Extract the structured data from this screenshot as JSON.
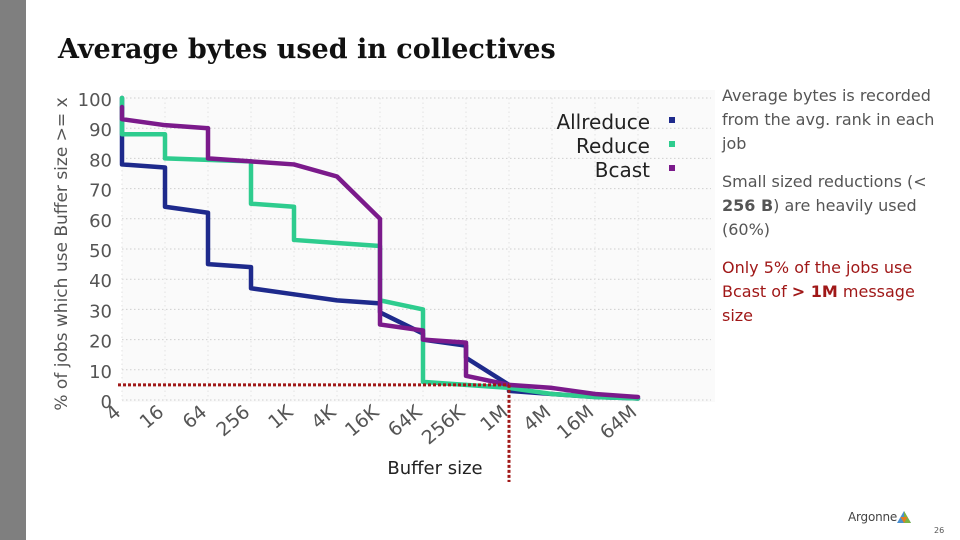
{
  "slide": {
    "title": "Average bytes used in collectives",
    "page_number": "26",
    "logo_text": "Argonne"
  },
  "notes": {
    "n1": "Average bytes is recorded from the avg. rank in each job",
    "n2_pre": "Small sized reductions    (< ",
    "n2_bold": "256 B",
    "n2_post": ") are heavily used (60%)",
    "n3_pre": "Only 5% of the jobs use Bcast of  ",
    "n3_bold": "> 1M",
    "n3_post": " message size"
  },
  "colors": {
    "allreduce": "#1e2a8c",
    "reduce": "#2ecc8e",
    "bcast": "#7b1a8b",
    "marker": "#a01818"
  },
  "chart_data": {
    "type": "line",
    "xlabel": "Buffer size",
    "ylabel": "% of jobs which use Buffer size >= x",
    "x_ticks": [
      "4",
      "16",
      "64",
      "256",
      "1K",
      "4K",
      "16K",
      "64K",
      "256K",
      "1M",
      "4M",
      "16M",
      "64M"
    ],
    "y_ticks": [
      "0",
      "10",
      "20",
      "30",
      "40",
      "50",
      "60",
      "70",
      "80",
      "90",
      "100"
    ],
    "ylim": [
      0,
      100
    ],
    "grid": true,
    "legend_placement": "top-right",
    "series": [
      {
        "name": "Allreduce",
        "x": [
          "4",
          "4",
          "16",
          "16",
          "64",
          "64",
          "256",
          "256",
          "256",
          "1K",
          "4K",
          "16K",
          "16K",
          "64K",
          "64K",
          "256K",
          "256K",
          "1M",
          "1M",
          "4M",
          "16M",
          "64M"
        ],
        "values": [
          100,
          78,
          77,
          64,
          62,
          45,
          44,
          38,
          37,
          35,
          33,
          32,
          29,
          22,
          20,
          18,
          14,
          5,
          3,
          2,
          1,
          0.5
        ]
      },
      {
        "name": "Reduce",
        "x": [
          "4",
          "4",
          "4",
          "16",
          "16",
          "256",
          "256",
          "1K",
          "1K",
          "4K",
          "16K",
          "16K",
          "64K",
          "64K",
          "256K",
          "1M",
          "4M",
          "16M",
          "64M"
        ],
        "values": [
          100,
          90,
          88,
          88,
          80,
          79,
          65,
          64,
          53,
          52,
          51,
          33,
          30,
          6,
          5,
          4,
          2,
          1,
          0.5
        ]
      },
      {
        "name": "Bcast",
        "x": [
          "4",
          "4",
          "16",
          "64",
          "64",
          "256",
          "1K",
          "4K",
          "16K",
          "16K",
          "64K",
          "64K",
          "256K",
          "256K",
          "1M",
          "4M",
          "16M",
          "64M"
        ],
        "values": [
          97,
          93,
          91,
          90,
          80,
          79,
          78,
          74,
          60,
          25,
          23,
          20,
          19,
          8,
          5,
          4,
          2,
          1
        ]
      }
    ],
    "marker_x": "1M",
    "marker_y": 5
  }
}
